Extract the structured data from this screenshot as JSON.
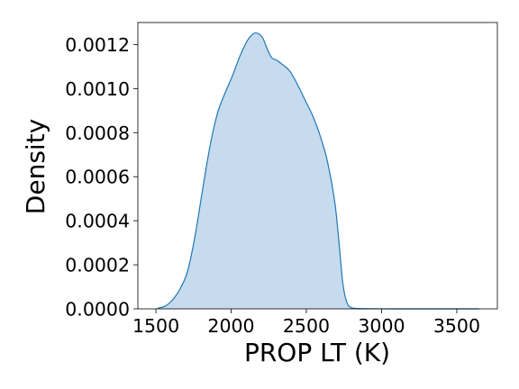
{
  "chart_data": {
    "type": "area",
    "title": "",
    "xlabel": "PROP LT (K)",
    "ylabel": "Density",
    "xlim": [
      1380,
      3770
    ],
    "ylim": [
      0,
      0.0013
    ],
    "x_ticks": [
      1500,
      2000,
      2500,
      3000,
      3500
    ],
    "x_tick_labels": [
      "1500",
      "2000",
      "2500",
      "3000",
      "3500"
    ],
    "y_ticks": [
      0,
      0.0002,
      0.0004,
      0.0006,
      0.0008,
      0.001,
      0.0012
    ],
    "y_tick_labels": [
      "0.0000",
      "0.0002",
      "0.0004",
      "0.0006",
      "0.0008",
      "0.0010",
      "0.0012"
    ],
    "grid": false,
    "legend": "none",
    "colors": {
      "fill": "#c6dbee",
      "line": "#1f77b4",
      "axes": "#000000"
    },
    "series": [
      {
        "x": [
          1510,
          1560,
          1610,
          1660,
          1710,
          1760,
          1810,
          1860,
          1910,
          1960,
          2010,
          2060,
          2110,
          2150,
          2180,
          2210,
          2240,
          2270,
          2300,
          2340,
          2390,
          2440,
          2490,
          2540,
          2590,
          2640,
          2690,
          2720,
          2740,
          2760,
          2780,
          2800,
          2830,
          2870,
          2920,
          3000,
          3100,
          3200,
          3350,
          3500,
          3650
        ],
        "y": [
          3e-06,
          1.2e-05,
          4e-05,
          9e-05,
          0.00017,
          0.00033,
          0.00054,
          0.00074,
          0.00089,
          0.00098,
          0.00106,
          0.00115,
          0.00122,
          0.00125,
          0.00125,
          0.00123,
          0.00118,
          0.00114,
          0.00113,
          0.00111,
          0.00108,
          0.00102,
          0.00095,
          0.00088,
          0.00079,
          0.00067,
          0.00048,
          0.00028,
          0.00013,
          5e-05,
          1.5e-05,
          5e-06,
          2e-06,
          1e-06,
          5e-07,
          2e-07,
          0,
          0,
          0,
          0,
          0
        ]
      }
    ]
  }
}
